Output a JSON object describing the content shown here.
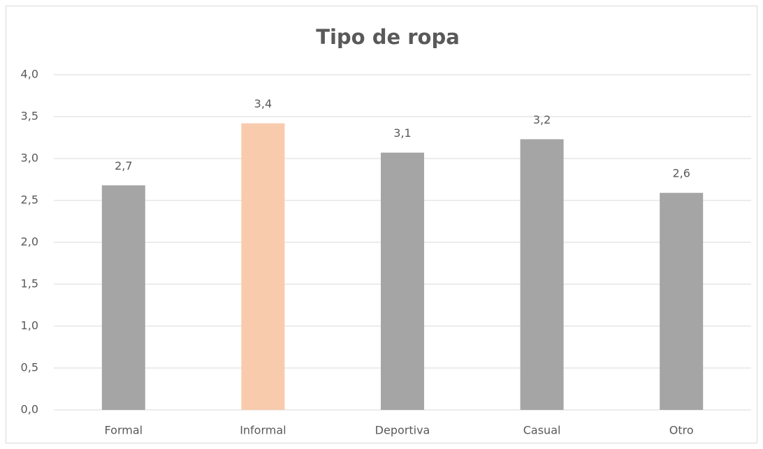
{
  "chart_data": {
    "type": "bar",
    "title": "Tipo de ropa",
    "categories": [
      "Formal",
      "Informal",
      "Deportiva",
      "Casual",
      "Otro"
    ],
    "values": [
      2.68,
      3.42,
      3.07,
      3.23,
      2.59
    ],
    "value_labels": [
      "2,7",
      "3,4",
      "3,1",
      "3,2",
      "2,6"
    ],
    "colors": [
      "#a5a5a5",
      "#f8cbad",
      "#a5a5a5",
      "#a5a5a5",
      "#a5a5a5"
    ],
    "ylim": [
      0,
      4
    ],
    "yticks": [
      {
        "value": 0,
        "label": "0,0"
      },
      {
        "value": 0.5,
        "label": "0,5"
      },
      {
        "value": 1,
        "label": "1,0"
      },
      {
        "value": 1.5,
        "label": "1,5"
      },
      {
        "value": 2,
        "label": "2,0"
      },
      {
        "value": 2.5,
        "label": "2,5"
      },
      {
        "value": 3,
        "label": "3,0"
      },
      {
        "value": 3.5,
        "label": "3,5"
      },
      {
        "value": 4,
        "label": "4,0"
      }
    ],
    "grid": true
  }
}
